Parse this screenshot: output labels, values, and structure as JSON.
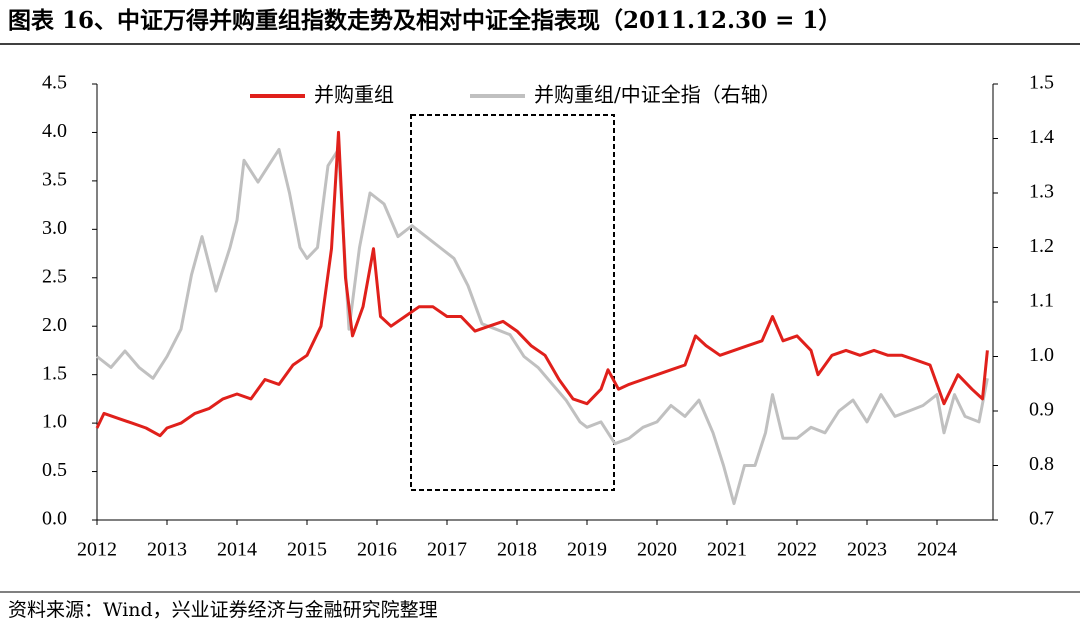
{
  "chart_data": {
    "type": "line",
    "title": "图表 16、中证万得并购重组指数走势及相对中证全指表现（2011.12.30 = 1）",
    "source": "资料来源：Wind，兴业证券经济与金融研究院整理",
    "xlim": [
      2012,
      2024.8
    ],
    "xticks": [
      2012,
      2013,
      2014,
      2015,
      2016,
      2017,
      2018,
      2019,
      2020,
      2021,
      2022,
      2023,
      2024
    ],
    "ylim": [
      0,
      4.5
    ],
    "yticks": [
      {
        "value": 0,
        "label": "0.0"
      },
      0.5,
      {
        "value": 1,
        "label": "1.0"
      },
      1.5,
      {
        "value": 2,
        "label": "2.0"
      },
      2.5,
      {
        "value": 3,
        "label": "3.0"
      },
      3.5,
      {
        "value": 4,
        "label": "4.0"
      },
      4.5
    ],
    "y2lim": [
      0.7,
      1.5
    ],
    "y2ticks": [
      0.7,
      0.8,
      0.9,
      {
        "value": 1,
        "label": "1.0"
      },
      1.1,
      1.2,
      1.3,
      1.4,
      1.5
    ],
    "legend": "top",
    "series": [
      {
        "name": "并购重组",
        "color": "#e0201b",
        "x": [
          2012.0,
          2012.1,
          2012.3,
          2012.5,
          2012.7,
          2012.9,
          2013.0,
          2013.2,
          2013.4,
          2013.6,
          2013.8,
          2014.0,
          2014.2,
          2014.4,
          2014.6,
          2014.8,
          2015.0,
          2015.2,
          2015.35,
          2015.45,
          2015.55,
          2015.65,
          2015.8,
          2015.95,
          2016.05,
          2016.2,
          2016.4,
          2016.6,
          2016.8,
          2017.0,
          2017.2,
          2017.4,
          2017.6,
          2017.8,
          2018.0,
          2018.2,
          2018.4,
          2018.6,
          2018.8,
          2019.0,
          2019.2,
          2019.3,
          2019.45,
          2019.6,
          2019.8,
          2020.0,
          2020.2,
          2020.4,
          2020.55,
          2020.7,
          2020.9,
          2021.1,
          2021.3,
          2021.5,
          2021.65,
          2021.8,
          2022.0,
          2022.2,
          2022.3,
          2022.5,
          2022.7,
          2022.9,
          2023.1,
          2023.3,
          2023.5,
          2023.7,
          2023.9,
          2024.0,
          2024.1,
          2024.3,
          2024.5,
          2024.65,
          2024.72
        ],
        "values": [
          0.95,
          1.1,
          1.05,
          1.0,
          0.95,
          0.87,
          0.95,
          1.0,
          1.1,
          1.15,
          1.25,
          1.3,
          1.25,
          1.45,
          1.4,
          1.6,
          1.7,
          2.0,
          2.8,
          4.0,
          2.5,
          1.9,
          2.2,
          2.8,
          2.1,
          2.0,
          2.1,
          2.2,
          2.2,
          2.1,
          2.1,
          1.95,
          2.0,
          2.05,
          1.95,
          1.8,
          1.7,
          1.45,
          1.25,
          1.2,
          1.35,
          1.55,
          1.35,
          1.4,
          1.45,
          1.5,
          1.55,
          1.6,
          1.9,
          1.8,
          1.7,
          1.75,
          1.8,
          1.85,
          2.1,
          1.85,
          1.9,
          1.75,
          1.5,
          1.7,
          1.75,
          1.7,
          1.75,
          1.7,
          1.7,
          1.65,
          1.6,
          1.4,
          1.2,
          1.5,
          1.35,
          1.25,
          1.75
        ]
      },
      {
        "name": "并购重组/中证全指（右轴）",
        "color": "#c0c0c0",
        "axis": "y2",
        "x": [
          2012.0,
          2012.2,
          2012.4,
          2012.6,
          2012.8,
          2013.0,
          2013.2,
          2013.35,
          2013.5,
          2013.7,
          2013.9,
          2014.0,
          2014.1,
          2014.3,
          2014.45,
          2014.6,
          2014.75,
          2014.9,
          2015.0,
          2015.15,
          2015.3,
          2015.45,
          2015.6,
          2015.75,
          2015.9,
          2016.1,
          2016.3,
          2016.5,
          2016.7,
          2016.9,
          2017.1,
          2017.3,
          2017.5,
          2017.7,
          2017.9,
          2018.1,
          2018.3,
          2018.5,
          2018.7,
          2018.9,
          2019.0,
          2019.2,
          2019.4,
          2019.6,
          2019.8,
          2020.0,
          2020.2,
          2020.4,
          2020.6,
          2020.8,
          2020.95,
          2021.1,
          2021.25,
          2021.4,
          2021.55,
          2021.65,
          2021.8,
          2022.0,
          2022.2,
          2022.4,
          2022.6,
          2022.8,
          2023.0,
          2023.2,
          2023.4,
          2023.6,
          2023.8,
          2024.0,
          2024.1,
          2024.25,
          2024.4,
          2024.6,
          2024.72
        ],
        "values": [
          1.0,
          0.98,
          1.01,
          0.98,
          0.96,
          1.0,
          1.05,
          1.15,
          1.22,
          1.12,
          1.2,
          1.25,
          1.36,
          1.32,
          1.35,
          1.38,
          1.3,
          1.2,
          1.18,
          1.2,
          1.35,
          1.38,
          1.05,
          1.2,
          1.3,
          1.28,
          1.22,
          1.24,
          1.22,
          1.2,
          1.18,
          1.13,
          1.06,
          1.05,
          1.04,
          1.0,
          0.98,
          0.95,
          0.92,
          0.88,
          0.87,
          0.88,
          0.84,
          0.85,
          0.87,
          0.88,
          0.91,
          0.89,
          0.92,
          0.86,
          0.8,
          0.73,
          0.8,
          0.8,
          0.86,
          0.93,
          0.85,
          0.85,
          0.87,
          0.86,
          0.9,
          0.92,
          0.88,
          0.93,
          0.89,
          0.9,
          0.91,
          0.93,
          0.86,
          0.93,
          0.89,
          0.88,
          0.96
        ]
      }
    ]
  }
}
